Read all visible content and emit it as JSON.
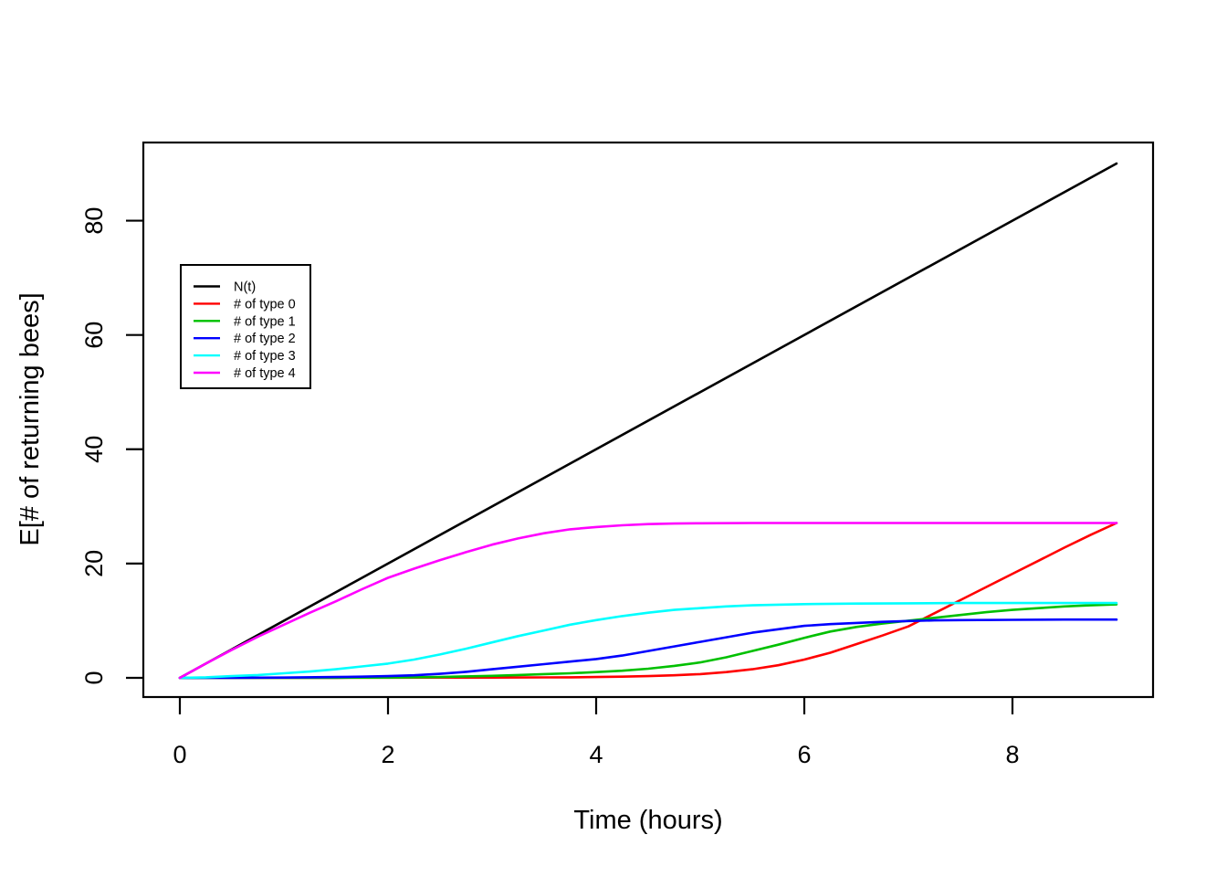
{
  "chart_data": {
    "type": "line",
    "title": "",
    "xlabel": "Time (hours)",
    "ylabel": "E[# of returning bees]",
    "xlim": [
      0,
      9
    ],
    "ylim": [
      0,
      90
    ],
    "x_ticks": [
      0,
      2,
      4,
      6,
      8
    ],
    "y_ticks": [
      0,
      20,
      40,
      60,
      80
    ],
    "grid": false,
    "legend_position": "upper-left-inside",
    "background": "#ffffff",
    "axis_color": "#000000",
    "series": [
      {
        "name": "N(t)",
        "color": "#000000",
        "points": [
          [
            0,
            0
          ],
          [
            9,
            90
          ]
        ]
      },
      {
        "name": "# of type 0",
        "color": "#ff0000",
        "points": [
          [
            0,
            0
          ],
          [
            0.5,
            0
          ],
          [
            1,
            0
          ],
          [
            1.5,
            0.02
          ],
          [
            2,
            0.03
          ],
          [
            2.5,
            0.05
          ],
          [
            3,
            0.05
          ],
          [
            3.25,
            0.06
          ],
          [
            3.5,
            0.08
          ],
          [
            3.75,
            0.1
          ],
          [
            4,
            0.15
          ],
          [
            4.25,
            0.2
          ],
          [
            4.5,
            0.3
          ],
          [
            4.75,
            0.45
          ],
          [
            5,
            0.65
          ],
          [
            5.25,
            1.0
          ],
          [
            5.5,
            1.5
          ],
          [
            5.75,
            2.2
          ],
          [
            6,
            3.2
          ],
          [
            6.25,
            4.4
          ],
          [
            6.5,
            5.9
          ],
          [
            6.75,
            7.4
          ],
          [
            7,
            9.0
          ],
          [
            7.25,
            11.3
          ],
          [
            7.5,
            13.6
          ],
          [
            7.75,
            15.9
          ],
          [
            8,
            18.2
          ],
          [
            8.25,
            20.5
          ],
          [
            8.5,
            22.8
          ],
          [
            8.75,
            25.0
          ],
          [
            9,
            27.1
          ]
        ]
      },
      {
        "name": "# of type 1",
        "color": "#00c000",
        "points": [
          [
            0,
            0
          ],
          [
            0.5,
            0
          ],
          [
            1,
            0.01
          ],
          [
            1.5,
            0.02
          ],
          [
            2,
            0.05
          ],
          [
            2.5,
            0.15
          ],
          [
            2.75,
            0.25
          ],
          [
            3,
            0.35
          ],
          [
            3.25,
            0.5
          ],
          [
            3.5,
            0.65
          ],
          [
            3.75,
            0.8
          ],
          [
            4,
            1.0
          ],
          [
            4.25,
            1.25
          ],
          [
            4.5,
            1.6
          ],
          [
            4.75,
            2.1
          ],
          [
            5,
            2.7
          ],
          [
            5.25,
            3.6
          ],
          [
            5.5,
            4.7
          ],
          [
            5.75,
            5.8
          ],
          [
            6,
            7.0
          ],
          [
            6.25,
            8.1
          ],
          [
            6.5,
            8.9
          ],
          [
            6.75,
            9.5
          ],
          [
            7,
            10.0
          ],
          [
            7.25,
            10.5
          ],
          [
            7.5,
            11.0
          ],
          [
            7.75,
            11.5
          ],
          [
            8,
            11.9
          ],
          [
            8.25,
            12.2
          ],
          [
            8.5,
            12.5
          ],
          [
            8.75,
            12.7
          ],
          [
            9,
            12.85
          ]
        ]
      },
      {
        "name": "# of type 2",
        "color": "#0000ff",
        "points": [
          [
            0,
            0
          ],
          [
            0.5,
            0.02
          ],
          [
            1,
            0.05
          ],
          [
            1.5,
            0.15
          ],
          [
            1.75,
            0.2
          ],
          [
            2,
            0.3
          ],
          [
            2.25,
            0.45
          ],
          [
            2.5,
            0.7
          ],
          [
            2.75,
            1.05
          ],
          [
            3,
            1.5
          ],
          [
            3.25,
            1.95
          ],
          [
            3.5,
            2.4
          ],
          [
            3.75,
            2.85
          ],
          [
            4,
            3.3
          ],
          [
            4.25,
            3.9
          ],
          [
            4.5,
            4.7
          ],
          [
            4.75,
            5.5
          ],
          [
            5,
            6.3
          ],
          [
            5.25,
            7.1
          ],
          [
            5.5,
            7.9
          ],
          [
            5.75,
            8.5
          ],
          [
            6,
            9.1
          ],
          [
            6.25,
            9.4
          ],
          [
            6.5,
            9.6
          ],
          [
            6.75,
            9.8
          ],
          [
            7,
            9.95
          ],
          [
            7.25,
            10.05
          ],
          [
            7.5,
            10.1
          ],
          [
            8,
            10.15
          ],
          [
            8.5,
            10.2
          ],
          [
            9,
            10.2
          ]
        ]
      },
      {
        "name": "# of type 3",
        "color": "#00ffff",
        "points": [
          [
            0,
            0
          ],
          [
            0.25,
            0.1
          ],
          [
            0.5,
            0.3
          ],
          [
            0.75,
            0.5
          ],
          [
            1,
            0.8
          ],
          [
            1.25,
            1.1
          ],
          [
            1.5,
            1.5
          ],
          [
            1.75,
            2.0
          ],
          [
            2,
            2.5
          ],
          [
            2.25,
            3.2
          ],
          [
            2.5,
            4.1
          ],
          [
            2.75,
            5.1
          ],
          [
            3,
            6.2
          ],
          [
            3.25,
            7.3
          ],
          [
            3.5,
            8.3
          ],
          [
            3.75,
            9.3
          ],
          [
            4,
            10.1
          ],
          [
            4.25,
            10.8
          ],
          [
            4.5,
            11.4
          ],
          [
            4.75,
            11.9
          ],
          [
            5,
            12.2
          ],
          [
            5.25,
            12.5
          ],
          [
            5.5,
            12.7
          ],
          [
            5.75,
            12.8
          ],
          [
            6,
            12.9
          ],
          [
            6.5,
            13.0
          ],
          [
            7,
            13.05
          ],
          [
            7.5,
            13.1
          ],
          [
            8,
            13.1
          ],
          [
            8.5,
            13.1
          ],
          [
            9,
            13.1
          ]
        ]
      },
      {
        "name": "# of type 4",
        "color": "#ff00ff",
        "points": [
          [
            0,
            0
          ],
          [
            0.25,
            2.5
          ],
          [
            0.5,
            4.9
          ],
          [
            0.75,
            7.2
          ],
          [
            1,
            9.3
          ],
          [
            1.25,
            11.4
          ],
          [
            1.5,
            13.4
          ],
          [
            1.75,
            15.5
          ],
          [
            2,
            17.5
          ],
          [
            2.25,
            19.1
          ],
          [
            2.5,
            20.6
          ],
          [
            2.75,
            22.0
          ],
          [
            3,
            23.3
          ],
          [
            3.25,
            24.4
          ],
          [
            3.5,
            25.3
          ],
          [
            3.75,
            26.0
          ],
          [
            4,
            26.4
          ],
          [
            4.25,
            26.7
          ],
          [
            4.5,
            26.9
          ],
          [
            4.75,
            27.0
          ],
          [
            5,
            27.05
          ],
          [
            5.5,
            27.1
          ],
          [
            6,
            27.1
          ],
          [
            6.5,
            27.1
          ],
          [
            7,
            27.1
          ],
          [
            7.5,
            27.1
          ],
          [
            8,
            27.1
          ],
          [
            8.5,
            27.1
          ],
          [
            9,
            27.1
          ]
        ]
      }
    ]
  }
}
